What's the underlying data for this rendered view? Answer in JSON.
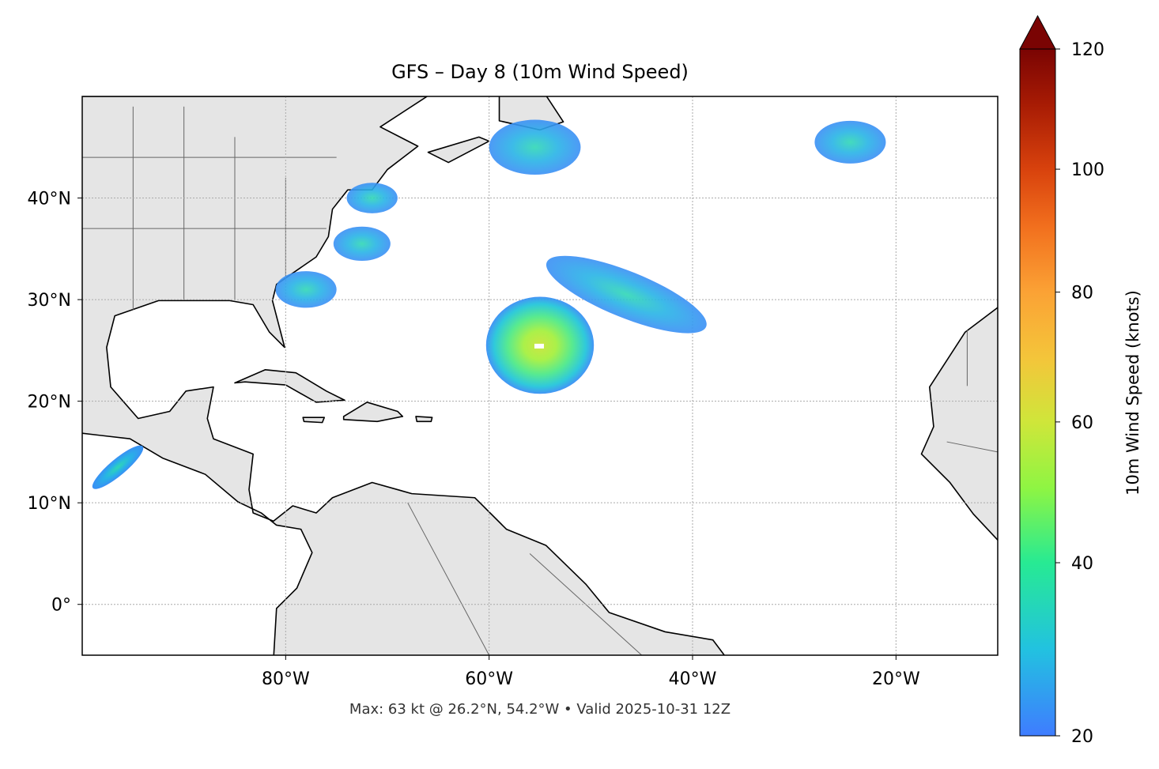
{
  "chart_data": {
    "type": "heatmap",
    "title": "GFS – Day 8 (10m Wind Speed)",
    "footer": "Max: 63 kt @ 26.2°N, 54.2°W • Valid 2025-10-31 12Z",
    "extent": {
      "lon": [
        -100,
        -10
      ],
      "lat": [
        -5,
        50
      ]
    },
    "grid": true,
    "x_ticks": [
      {
        "value": -80,
        "label": "80°W"
      },
      {
        "value": -60,
        "label": "60°W"
      },
      {
        "value": -40,
        "label": "40°W"
      },
      {
        "value": -20,
        "label": "20°W"
      }
    ],
    "y_ticks": [
      {
        "value": 40,
        "label": "40°N"
      },
      {
        "value": 30,
        "label": "30°N"
      },
      {
        "value": 20,
        "label": "20°N"
      },
      {
        "value": 10,
        "label": "10°N"
      },
      {
        "value": 0,
        "label": "0°"
      }
    ],
    "colorbar": {
      "label": "10m Wind Speed (knots)",
      "range": [
        20,
        120
      ],
      "extend": "max",
      "ticks": [
        {
          "value": 20,
          "label": "20"
        },
        {
          "value": 40,
          "label": "40"
        },
        {
          "value": 60,
          "label": "60"
        },
        {
          "value": 80,
          "label": "80"
        },
        {
          "value": 100,
          "label": "100"
        },
        {
          "value": 120,
          "label": "120"
        }
      ],
      "colors": [
        "#3f7cff",
        "#2aa7f0",
        "#1dcfd4",
        "#27ea93",
        "#8ef543",
        "#cfe63a",
        "#f4c53a",
        "#fba235",
        "#f2701e",
        "#d8420d",
        "#a71b04",
        "#7a0403"
      ]
    },
    "max_point": {
      "speed_kt": 63,
      "lat": 26.2,
      "lon": -54.2
    },
    "wind_features": [
      {
        "name": "hurricane",
        "lat": 25.5,
        "lon": -55,
        "radius_deg": 5.3,
        "peak_kt": 63
      },
      {
        "name": "north-atlantic-low",
        "lat": 45,
        "lon": -55.5,
        "radius_deg": 4.5,
        "peak_kt": 34
      },
      {
        "name": "subtropical-jet-band",
        "lat": 30.5,
        "lon": -46.5,
        "radius_deg": 6.5,
        "peak_kt": 36
      },
      {
        "name": "us-east-coast-1",
        "lat": 40,
        "lon": -71.5,
        "radius_deg": 2.5,
        "peak_kt": 33
      },
      {
        "name": "us-east-coast-2",
        "lat": 35.5,
        "lon": -72.5,
        "radius_deg": 2.8,
        "peak_kt": 28
      },
      {
        "name": "us-southeast-coast",
        "lat": 31,
        "lon": -78,
        "radius_deg": 3,
        "peak_kt": 27
      },
      {
        "name": "east-atlantic-north",
        "lat": 45.5,
        "lon": -24.5,
        "radius_deg": 3.5,
        "peak_kt": 24
      },
      {
        "name": "pacific-gap-wind",
        "lat": 13.5,
        "lon": -96.5,
        "radius_deg": 2,
        "peak_kt": 30
      }
    ]
  }
}
